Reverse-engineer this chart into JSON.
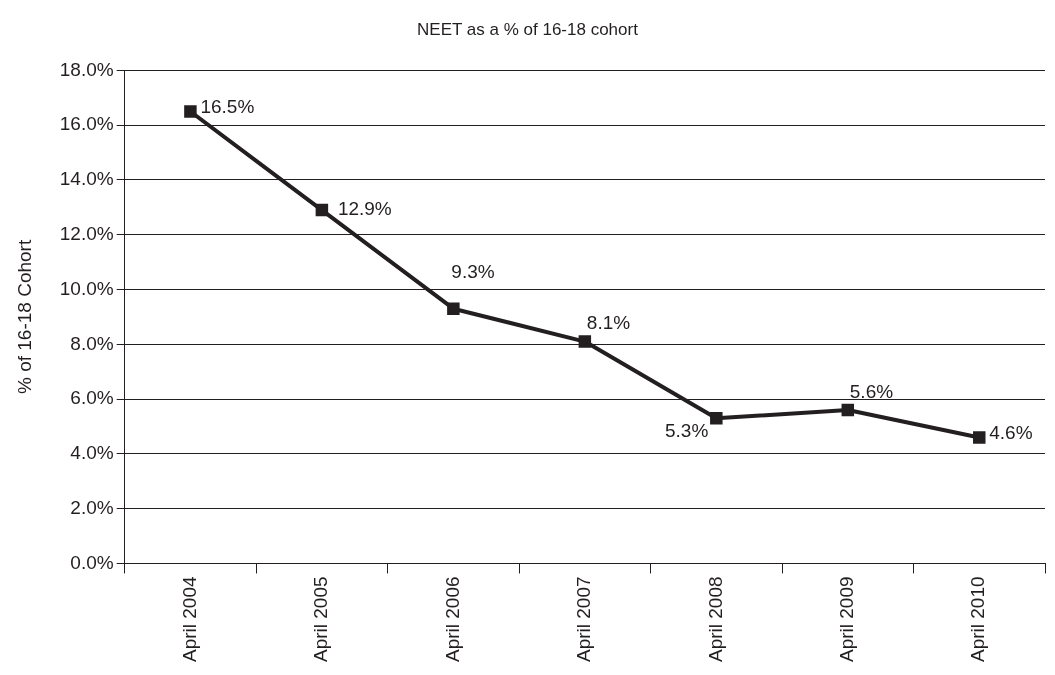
{
  "chart_data": {
    "type": "line",
    "title": "NEET as a % of 16-18 cohort",
    "ylabel": "% of 16-18 Cohort",
    "categories": [
      "April 2004",
      "April 2005",
      "April 2006",
      "April 2007",
      "April 2008",
      "April 2009",
      "April 2010"
    ],
    "series": [
      {
        "color": "#231f20",
        "values": [
          16.5,
          12.9,
          9.3,
          8.1,
          5.3,
          5.6,
          4.6
        ],
        "value_labels": [
          "16.5%",
          "12.9%",
          "9.3%",
          "8.1%",
          "5.3%",
          "5.6%",
          "4.6%"
        ]
      }
    ],
    "ylim": [
      0,
      18
    ],
    "yticks": [
      {
        "value": 0,
        "label": "0.0%"
      },
      {
        "value": 2,
        "label": "2.0%"
      },
      {
        "value": 4,
        "label": "4.0%"
      },
      {
        "value": 6,
        "label": "6.0%"
      },
      {
        "value": 8,
        "label": "8.0%"
      },
      {
        "value": 10,
        "label": "10.0%"
      },
      {
        "value": 12,
        "label": "12.0%"
      },
      {
        "value": 14,
        "label": "14.0%"
      },
      {
        "value": 16,
        "label": "16.0%"
      },
      {
        "value": 18,
        "label": "18.0%"
      }
    ],
    "grid": "y",
    "legend": false,
    "marker": "square",
    "line_style": "solid"
  }
}
